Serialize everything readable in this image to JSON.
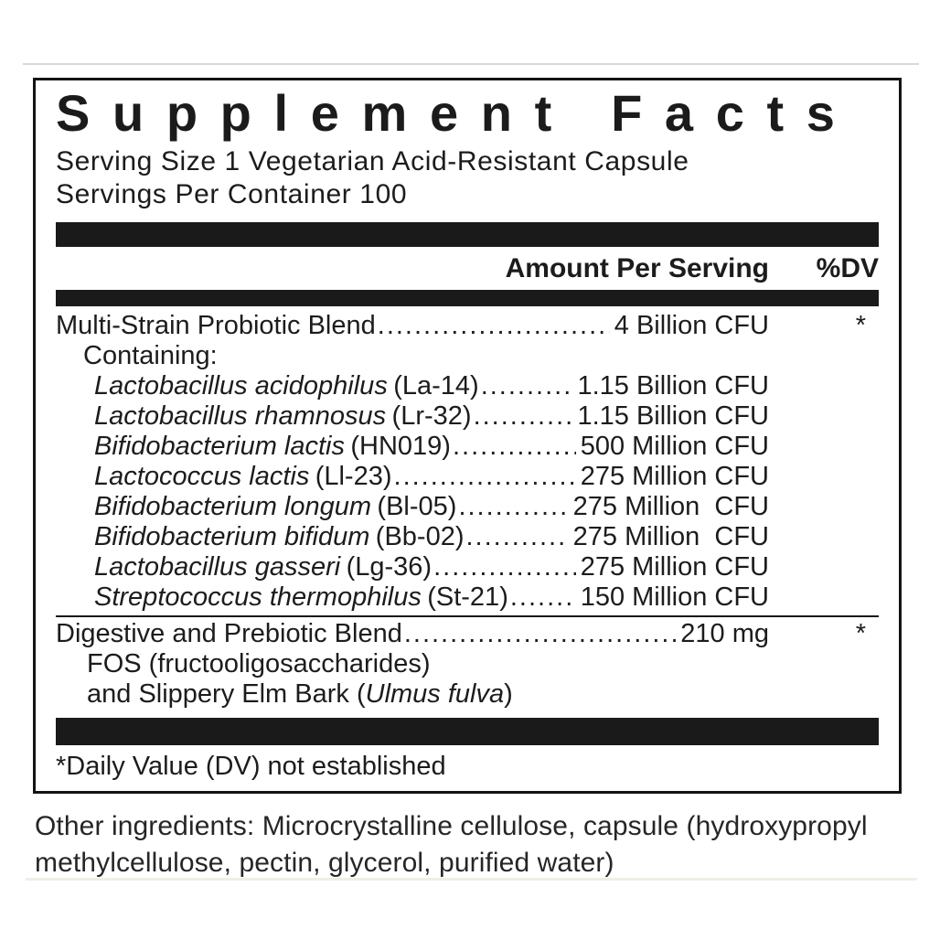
{
  "panel": {
    "title": "Supplement Facts",
    "serving_size": "Serving Size 1 Vegetarian Acid-Resistant Capsule",
    "servings_per_container": "Servings Per Container 100",
    "columns": {
      "amount": "Amount Per Serving",
      "dv": "%DV"
    },
    "probiotic_blend": {
      "name": "Multi-Strain Probiotic Blend",
      "amount": "4 Billion CFU",
      "dv": "*",
      "containing_label": "Containing:",
      "strains": [
        {
          "species": "Lactobacillus acidophilus",
          "code": "(La-14)",
          "amount": "1.15 Billion CFU"
        },
        {
          "species": "Lactobacillus rhamnosus",
          "code": "(Lr-32)",
          "amount": "1.15 Billion CFU"
        },
        {
          "species": "Bifidobacterium lactis",
          "code": "(HN019)",
          "amount": "500 Million CFU"
        },
        {
          "species": "Lactococcus lactis",
          "code": "(Ll-23)",
          "amount": "275 Million CFU"
        },
        {
          "species": "Bifidobacterium longum",
          "code": "(Bl-05)",
          "amount": "275 Million  CFU"
        },
        {
          "species": "Bifidobacterium bifidum",
          "code": "(Bb-02)",
          "amount": "275 Million  CFU"
        },
        {
          "species": "Lactobacillus gasseri",
          "code": "(Lg-36)",
          "amount": "275 Million CFU"
        },
        {
          "species": "Streptococcus thermophilus",
          "code": "(St-21)",
          "amount": "150 Million CFU"
        }
      ]
    },
    "digestive_blend": {
      "name": "Digestive and Prebiotic Blend",
      "amount": "210 mg",
      "dv": "*",
      "component_fos": "FOS (fructooligosaccharides)",
      "component_elm_prefix": "and Slippery Elm Bark (",
      "component_elm_italic": "Ulmus fulva",
      "component_elm_suffix": ")"
    },
    "footnote": "*Daily Value (DV) not established"
  },
  "other_ingredients": {
    "lines": [
      "Other ingredients: Microcrystalline cellulose, capsule (hydroxypropyl",
      "methylcellulose, pectin, glycerol, purified water)"
    ]
  },
  "colors": {
    "text": "#1c1c1c",
    "bar": "#1a1a1a",
    "panel_border": "#141414",
    "top_rule": "#d8d8d8"
  }
}
